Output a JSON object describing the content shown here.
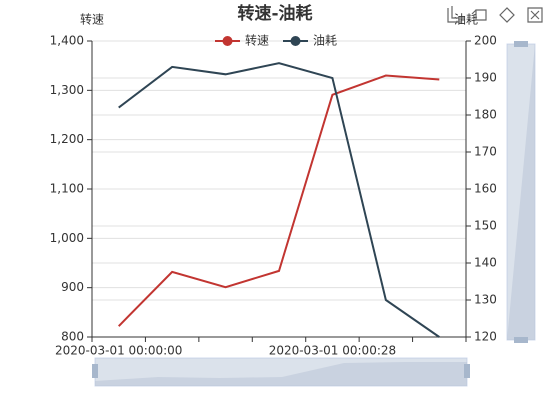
{
  "chart_data": {
    "type": "line",
    "title": "转速-油耗",
    "y_label": "转速",
    "y2_label": "油耗",
    "categories": [
      "2020-03-01 00:00:00",
      null,
      null,
      null,
      "2020-03-01 00:00:28",
      null,
      null
    ],
    "series": [
      {
        "name": "转速",
        "color": "#c23531",
        "values": [
          822,
          932,
          901,
          934,
          1291,
          1330,
          1322
        ]
      },
      {
        "name": "油耗",
        "color": "#2f4554",
        "axis": "y2",
        "values": [
          182,
          193,
          191,
          194,
          190,
          130,
          120
        ]
      }
    ],
    "ylim": [
      800,
      1400
    ],
    "yticks": [
      800,
      900,
      {
        "value": 1000,
        "label": "1,000"
      },
      {
        "value": 1100,
        "label": "1,100"
      },
      {
        "value": 1200,
        "label": "1,200"
      },
      {
        "value": 1300,
        "label": "1,300"
      },
      {
        "value": 1400,
        "label": "1,400"
      }
    ],
    "y2lim": [
      120,
      200
    ],
    "y2ticks": [
      120,
      130,
      140,
      150,
      160,
      170,
      180,
      190,
      200
    ],
    "grid": true
  }
}
